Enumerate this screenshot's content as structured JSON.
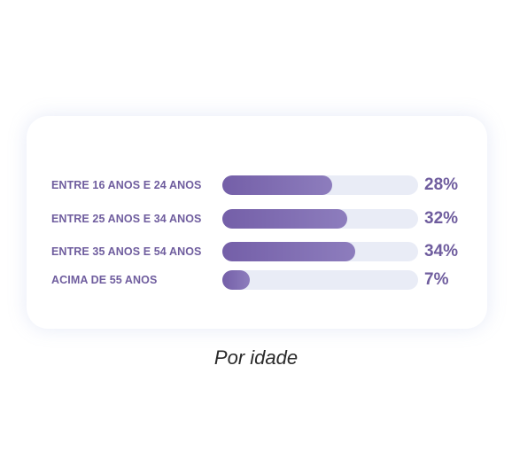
{
  "chart_data": {
    "type": "bar",
    "orientation": "horizontal",
    "categories": [
      "ENTRE 16 ANOS E 24 ANOS",
      "ENTRE 25 ANOS E 34 ANOS",
      "ENTRE 35 ANOS E 54 ANOS",
      "ACIMA DE 55 ANOS"
    ],
    "values": [
      28,
      32,
      34,
      7
    ],
    "value_labels": [
      "28%",
      "32%",
      "34%",
      "7%"
    ],
    "unit": "%",
    "title": "",
    "caption": "Por idade",
    "xlim": [
      0,
      50
    ],
    "grid": false,
    "legend": "none",
    "colors": {
      "bar_start": "#745fa8",
      "bar_end": "#8d7dbd",
      "track": "#e9ecf6",
      "text": "#6f5d9e"
    }
  }
}
